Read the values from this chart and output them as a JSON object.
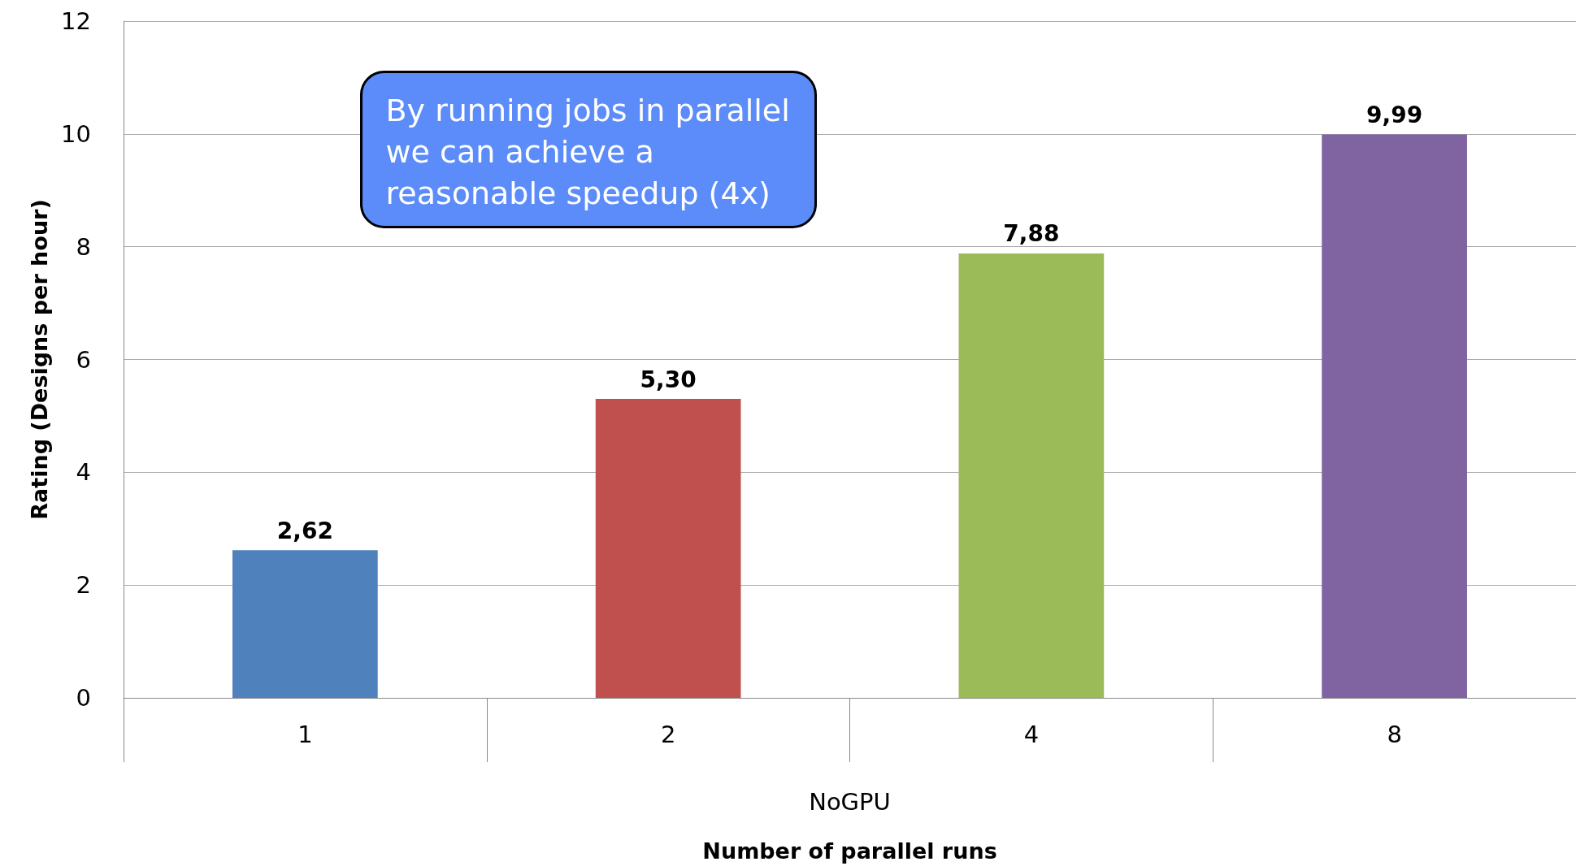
{
  "chart_data": {
    "type": "bar",
    "xlabel": "Number of parallel runs",
    "ylabel": "Rating (Designs per hour)",
    "categories": [
      "1",
      "2",
      "4",
      "8"
    ],
    "values": [
      2.62,
      5.3,
      7.88,
      9.99
    ],
    "colors": [
      "#4f81bd",
      "#c0504d",
      "#9bbb59",
      "#8064a2"
    ],
    "value_labels": [
      "2,62",
      "5,30",
      "7,88",
      "9,99"
    ],
    "ylim": [
      0,
      12
    ],
    "yticks": [
      0,
      2,
      4,
      6,
      8,
      10,
      12
    ],
    "grid": "y",
    "annotations": [
      "By running jobs in parallel\nwe can achieve a\nreasonable speedup (4x)",
      "NoGPU"
    ]
  }
}
